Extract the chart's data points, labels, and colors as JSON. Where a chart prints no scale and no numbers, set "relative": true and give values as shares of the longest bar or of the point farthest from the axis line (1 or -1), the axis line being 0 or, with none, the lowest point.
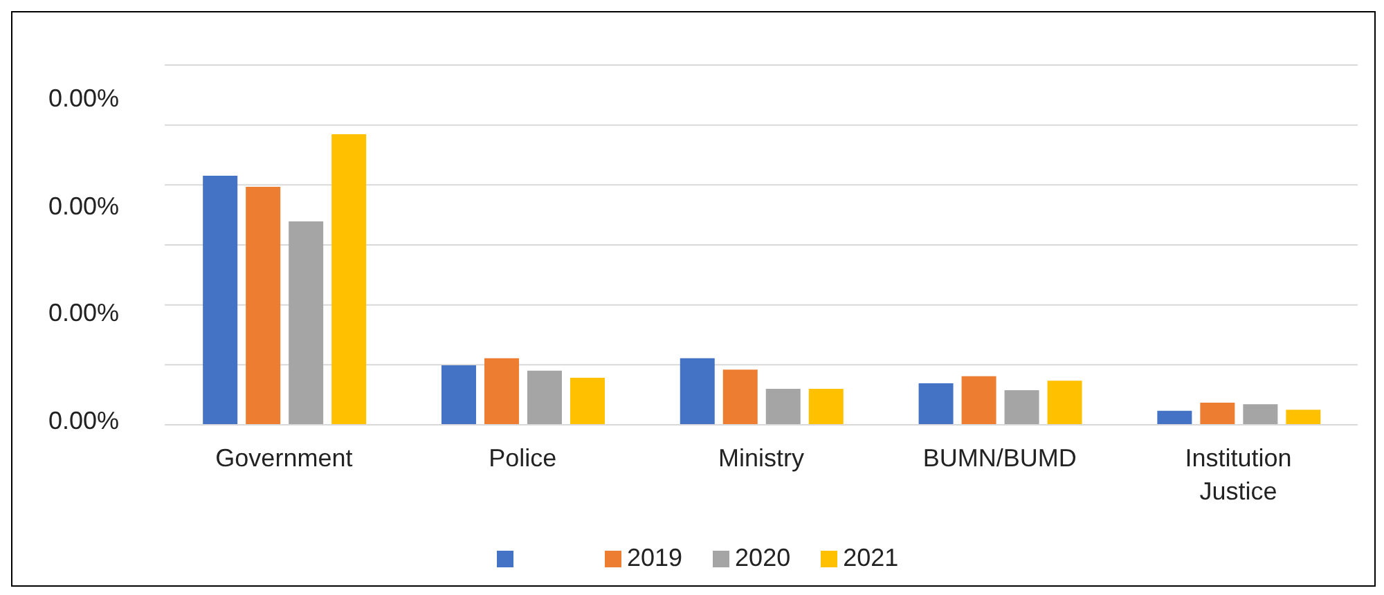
{
  "chart_data": {
    "type": "bar",
    "relative": true,
    "categories": [
      "Government",
      "Police",
      "Ministry",
      "BUMN/BUMD",
      "Institution Justice"
    ],
    "series": [
      {
        "color": "#4472c4",
        "values": [
          0.857,
          0.205,
          0.229,
          0.143,
          0.048
        ]
      },
      {
        "name": "2019",
        "color": "#ed7d31",
        "values": [
          0.819,
          0.229,
          0.19,
          0.167,
          0.076
        ]
      },
      {
        "name": "2020",
        "color": "#a5a5a5",
        "values": [
          0.7,
          0.186,
          0.124,
          0.119,
          0.071
        ]
      },
      {
        "name": "2021",
        "color": "#ffc000",
        "values": [
          1,
          0.162,
          0.124,
          0.152,
          0.052
        ]
      }
    ],
    "annotations": [
      "0.00%",
      "0.00%",
      "0.00%",
      "0.00%"
    ],
    "grid": "y",
    "legend": "bottom"
  }
}
